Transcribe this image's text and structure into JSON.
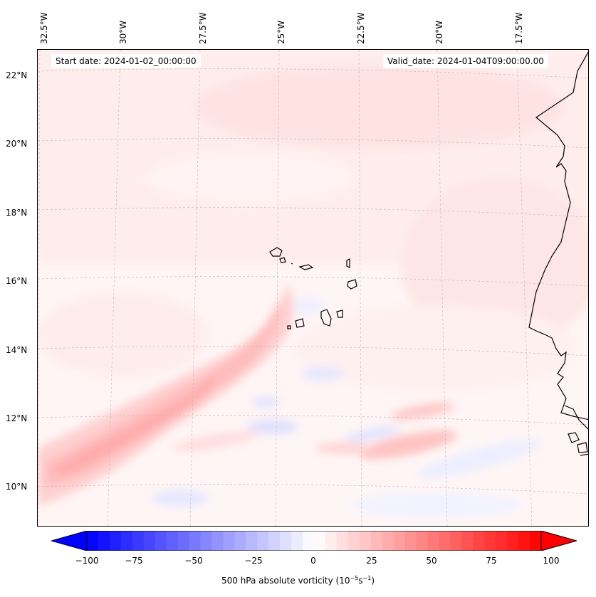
{
  "header": {
    "start_date": "Start date: 2024-01-02_00:00:00",
    "valid_date": "Valid_date: 2024-01-04T09:00:00.00"
  },
  "axes": {
    "lon_labels": [
      "32.5°W",
      "30°W",
      "27.5°W",
      "25°W",
      "22.5°W",
      "20°W",
      "17.5°W"
    ],
    "lat_labels": [
      "22°N",
      "20°N",
      "18°N",
      "16°N",
      "14°N",
      "12°N",
      "10°N"
    ]
  },
  "colorbar": {
    "ticks": [
      "−100",
      "−75",
      "−50",
      "−25",
      "0",
      "25",
      "50",
      "75",
      "100"
    ],
    "label": "500 hPa absolute vorticity (10",
    "label_sup1": "−5",
    "label_mid": "s",
    "label_sup2": "−1",
    "label_end": ")",
    "min": -100,
    "max": 100,
    "levels": 40,
    "color_negative": "#0000ff",
    "color_zero": "#ffffff",
    "color_positive": "#ff0000"
  },
  "map": {
    "type": "filled-contour",
    "variable": "500 hPa absolute vorticity",
    "projection": "conic",
    "coastline_color": "#000000",
    "gridline_color": "#b0b0b0"
  }
}
